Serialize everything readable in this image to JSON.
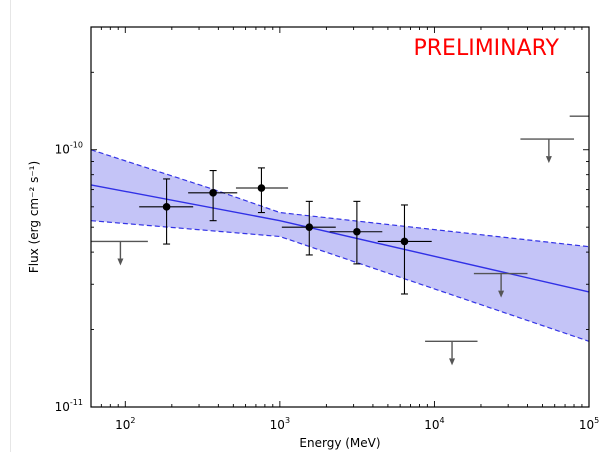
{
  "chart_data": {
    "type": "scatter",
    "title": "",
    "annotation": "PRELIMINARY",
    "xlabel": "Energy (MeV)",
    "ylabel": "Flux (erg cm⁻² s⁻¹)",
    "xscale": "log",
    "yscale": "log",
    "xlim": [
      60,
      100000
    ],
    "ylim": [
      1e-11,
      3e-10
    ],
    "x_ticks": [
      {
        "value": 100,
        "base": "10",
        "exp": "2"
      },
      {
        "value": 1000,
        "base": "10",
        "exp": "3"
      },
      {
        "value": 10000,
        "base": "10",
        "exp": "4"
      },
      {
        "value": 100000,
        "base": "10",
        "exp": "5"
      }
    ],
    "y_ticks": [
      {
        "value": 1e-11,
        "base": "10",
        "exp": "-11"
      },
      {
        "value": 1e-10,
        "base": "10",
        "exp": "-10"
      }
    ],
    "data_points": [
      {
        "x": 185,
        "y": 6e-11,
        "xlo": 123,
        "xhi": 275,
        "ylo": 4.3e-11,
        "yhi": 7.7e-11
      },
      {
        "x": 370,
        "y": 6.8e-11,
        "xlo": 255,
        "xhi": 530,
        "ylo": 5.3e-11,
        "yhi": 8.3e-11
      },
      {
        "x": 760,
        "y": 7.1e-11,
        "xlo": 520,
        "xhi": 1130,
        "ylo": 5.7e-11,
        "yhi": 8.5e-11
      },
      {
        "x": 1550,
        "y": 5e-11,
        "xlo": 1030,
        "xhi": 2300,
        "ylo": 3.9e-11,
        "yhi": 6.3e-11
      },
      {
        "x": 3150,
        "y": 4.8e-11,
        "xlo": 2100,
        "xhi": 4600,
        "ylo": 3.6e-11,
        "yhi": 6.3e-11
      },
      {
        "x": 6400,
        "y": 4.4e-11,
        "xlo": 4300,
        "xhi": 9600,
        "ylo": 2.75e-11,
        "yhi": 6.1e-11
      }
    ],
    "upper_limits": [
      {
        "x": 93,
        "y": 4.4e-11,
        "xlo": 60,
        "xhi": 140
      },
      {
        "x": 13000,
        "y": 1.8e-11,
        "xlo": 8700,
        "xhi": 19000
      },
      {
        "x": 27000,
        "y": 3.3e-11,
        "xlo": 18000,
        "xhi": 40000
      },
      {
        "x": 55000,
        "y": 1.1e-10,
        "xlo": 36000,
        "xhi": 80000
      },
      {
        "x": 100000,
        "y": 1.35e-10,
        "xlo": 75000,
        "xhi": 100000
      }
    ],
    "fit_line": {
      "x": [
        60,
        1000,
        100000
      ],
      "y": [
        7.3e-11,
        5.3e-11,
        2.8e-11
      ]
    },
    "band_upper": {
      "x": [
        60,
        350,
        1000,
        100000
      ],
      "y": [
        1e-10,
        7.1e-11,
        5.7e-11,
        4.2e-11
      ]
    },
    "band_lower": {
      "x": [
        60,
        1000,
        100000
      ],
      "y": [
        5.3e-11,
        4.6e-11,
        1.8e-11
      ]
    },
    "colors": {
      "band_fill": "#c4c4f7",
      "band_edge": "#3434e6",
      "fit_line": "#3030e6",
      "points": "#000000",
      "upper_limits": "#555555",
      "annotation": "#ff0000",
      "axes": "#000000"
    },
    "grid": false,
    "legend": "none"
  }
}
